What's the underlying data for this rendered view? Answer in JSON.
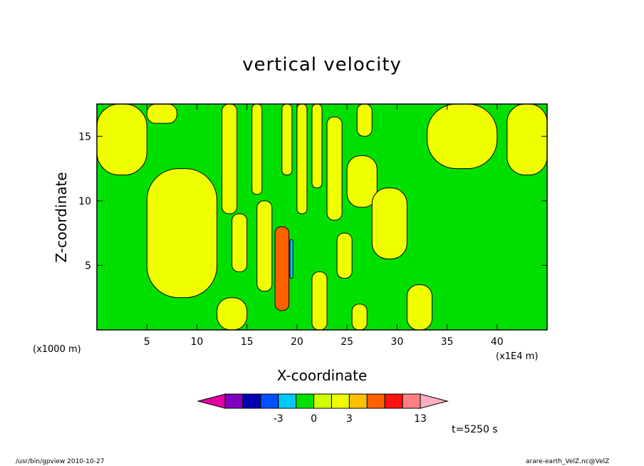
{
  "chart_data": {
    "type": "heatmap",
    "title": "vertical velocity",
    "xlabel": "X-coordinate",
    "ylabel": "Z-coordinate",
    "x_unit_left": "(x1000 m)",
    "x_unit_right": "(x1E4 m)",
    "xlim": [
      0,
      45
    ],
    "ylim": [
      0,
      17.5
    ],
    "x_ticks": [
      5,
      10,
      15,
      20,
      25,
      30,
      35,
      40
    ],
    "y_ticks": [
      5,
      10,
      15
    ],
    "regions": [
      {
        "level": "yellow",
        "x0": 5.0,
        "x1": 12.0,
        "y0": 2.5,
        "y1": 12.5
      },
      {
        "level": "yellow",
        "x0": 12.5,
        "x1": 14.0,
        "y0": 9.0,
        "y1": 17.5
      },
      {
        "level": "yellow",
        "x0": 13.5,
        "x1": 15.0,
        "y0": 4.5,
        "y1": 9.0
      },
      {
        "level": "yellow",
        "x0": 15.5,
        "x1": 16.5,
        "y0": 10.5,
        "y1": 17.5
      },
      {
        "level": "yellow",
        "x0": 16.0,
        "x1": 17.5,
        "y0": 3.0,
        "y1": 10.0
      },
      {
        "level": "yellow",
        "x0": 18.5,
        "x1": 19.5,
        "y0": 12.0,
        "y1": 17.5
      },
      {
        "level": "yellow",
        "x0": 20.0,
        "x1": 21.0,
        "y0": 9.0,
        "y1": 17.5
      },
      {
        "level": "yellow",
        "x0": 21.5,
        "x1": 22.5,
        "y0": 11.0,
        "y1": 17.5
      },
      {
        "level": "yellow",
        "x0": 23.0,
        "x1": 24.5,
        "y0": 8.5,
        "y1": 16.5
      },
      {
        "level": "yellow",
        "x0": 24.0,
        "x1": 25.5,
        "y0": 4.0,
        "y1": 7.5
      },
      {
        "level": "yellow",
        "x0": 25.0,
        "x1": 28.0,
        "y0": 9.5,
        "y1": 13.5
      },
      {
        "level": "yellow",
        "x0": 26.0,
        "x1": 27.5,
        "y0": 15.0,
        "y1": 17.5
      },
      {
        "level": "yellow",
        "x0": 27.5,
        "x1": 31.0,
        "y0": 5.5,
        "y1": 11.0
      },
      {
        "level": "yellow",
        "x0": 12.0,
        "x1": 15.0,
        "y0": 0.0,
        "y1": 2.5
      },
      {
        "level": "yellow",
        "x0": 21.5,
        "x1": 23.0,
        "y0": 0.0,
        "y1": 4.5
      },
      {
        "level": "yellow",
        "x0": 25.5,
        "x1": 27.0,
        "y0": 0.0,
        "y1": 2.0
      },
      {
        "level": "yellow",
        "x0": 31.0,
        "x1": 33.5,
        "y0": 0.0,
        "y1": 3.5
      },
      {
        "level": "yellow",
        "x0": 0.0,
        "x1": 5.0,
        "y0": 12.0,
        "y1": 17.5
      },
      {
        "level": "yellow",
        "x0": 5.0,
        "x1": 8.0,
        "y0": 16.0,
        "y1": 17.5
      },
      {
        "level": "yellow",
        "x0": 33.0,
        "x1": 40.0,
        "y0": 12.5,
        "y1": 17.5
      },
      {
        "level": "yellow",
        "x0": 41.0,
        "x1": 45.0,
        "y0": 12.0,
        "y1": 17.5
      },
      {
        "level": "orange",
        "x0": 17.8,
        "x1": 19.2,
        "y0": 1.5,
        "y1": 8.0
      },
      {
        "level": "cyan",
        "x0": 19.3,
        "x1": 19.6,
        "y0": 4.0,
        "y1": 7.0
      }
    ],
    "colorbar": {
      "colors": [
        "#e000a0",
        "#8000c0",
        "#0000b0",
        "#0050ff",
        "#00c8ff",
        "#00e000",
        "#d0ff00",
        "#f0ff00",
        "#ffc000",
        "#ff6000",
        "#ff1010",
        "#ff8080",
        "#ffb0c0"
      ],
      "tick_labels": [
        "-3",
        "0",
        "3",
        "13"
      ]
    },
    "level_colors": {
      "green": "#00e000",
      "yellow": "#f0ff00",
      "orange": "#ff6000",
      "cyan": "#00c8ff"
    }
  },
  "annotations": {
    "time": "t=5250 s",
    "footer_left": "/usr/bin/gpview   2010-10-27",
    "footer_right": "arare-earth_VelZ.nc@VelZ"
  }
}
